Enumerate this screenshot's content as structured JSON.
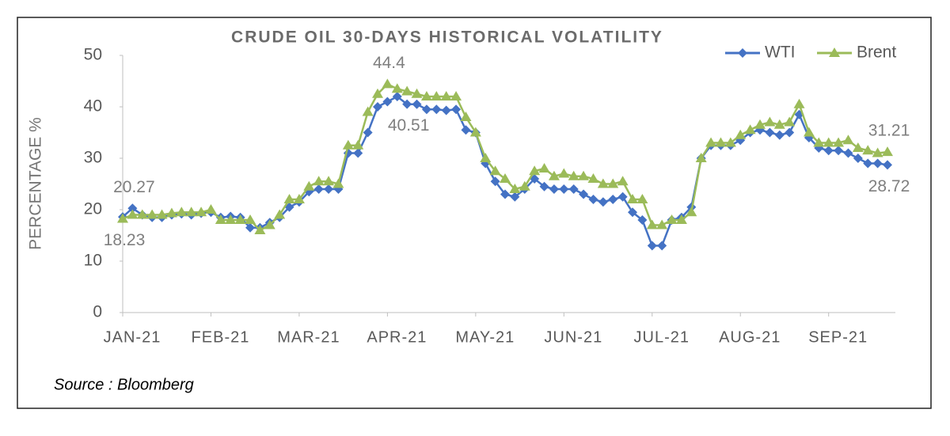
{
  "chart_data": {
    "type": "line",
    "title": "CRUDE OIL 30-DAYS HISTORICAL VOLATILITY",
    "y_label": "PERCENTAGE %",
    "source": "Source : Bloomberg",
    "categories": [
      "JAN-21",
      null,
      null,
      null,
      null,
      null,
      null,
      null,
      null,
      "FEB-21",
      null,
      null,
      null,
      null,
      null,
      null,
      null,
      null,
      "MAR-21",
      null,
      null,
      null,
      null,
      null,
      null,
      null,
      null,
      "APR-21",
      null,
      null,
      null,
      null,
      null,
      null,
      null,
      null,
      "MAY-21",
      null,
      null,
      null,
      null,
      null,
      null,
      null,
      null,
      "JUN-21",
      null,
      null,
      null,
      null,
      null,
      null,
      null,
      null,
      "JUL-21",
      null,
      null,
      null,
      null,
      null,
      null,
      null,
      null,
      "AUG-21",
      null,
      null,
      null,
      null,
      null,
      null,
      null,
      null,
      "SEP-21",
      null,
      null,
      null,
      null,
      null,
      null
    ],
    "series": [
      {
        "name": "WTI",
        "color": "#4472c4",
        "marker": "diamond",
        "values": [
          18.6,
          20.27,
          19,
          18.5,
          18.5,
          19,
          19.2,
          19,
          19.3,
          19.5,
          18.5,
          18.7,
          18.5,
          16.5,
          16.5,
          17.5,
          18.5,
          20.5,
          21.5,
          23.5,
          24,
          24,
          24,
          31,
          31,
          35,
          40,
          41,
          42,
          40.51,
          40.5,
          39.5,
          39.5,
          39.3,
          39.5,
          35.5,
          35,
          29,
          25.5,
          23,
          22.5,
          24,
          26,
          24.5,
          24,
          24,
          24,
          23,
          22,
          21.5,
          22,
          22.5,
          19.5,
          18,
          13,
          13,
          18,
          18.5,
          20.5,
          30,
          32.5,
          32.5,
          32.5,
          33.5,
          35,
          35.5,
          35,
          34.5,
          35,
          38.5,
          34,
          32,
          31.5,
          31.5,
          31,
          30,
          29,
          29,
          28.72
        ],
        "value_labels": [
          null,
          "20.27",
          null,
          null,
          null,
          null,
          null,
          null,
          null,
          null,
          null,
          null,
          null,
          null,
          null,
          null,
          null,
          null,
          null,
          null,
          null,
          null,
          null,
          null,
          null,
          null,
          null,
          null,
          null,
          "40.51",
          null,
          null,
          null,
          null,
          null,
          null,
          null,
          null,
          null,
          null,
          null,
          null,
          null,
          null,
          null,
          null,
          null,
          null,
          null,
          null,
          null,
          null,
          null,
          null,
          null,
          null,
          null,
          null,
          null,
          null,
          null,
          null,
          null,
          null,
          null,
          null,
          null,
          null,
          null,
          null,
          null,
          null,
          null,
          null,
          null,
          null,
          null,
          null,
          "28.72"
        ]
      },
      {
        "name": "Brent",
        "color": "#9bbb59",
        "marker": "triangle",
        "values": [
          18.23,
          19,
          19,
          19,
          19,
          19.3,
          19.5,
          19.5,
          19.5,
          20,
          18,
          18,
          18,
          18,
          16,
          17,
          19,
          22,
          22,
          24.5,
          25.5,
          25.5,
          25,
          32.5,
          32.5,
          39,
          42.5,
          44.4,
          43.5,
          43,
          42.5,
          42,
          42,
          42,
          42,
          38,
          35,
          30,
          27.5,
          26,
          24,
          24.5,
          27.5,
          28,
          26.5,
          27,
          26.5,
          26.5,
          26,
          25,
          25,
          25.5,
          22,
          22,
          17,
          17,
          18,
          18,
          19.5,
          30,
          33,
          33,
          33,
          34.5,
          35.5,
          36.5,
          37,
          36.5,
          37,
          40.5,
          35,
          33,
          33,
          33,
          33.5,
          32,
          31.5,
          31,
          31.21
        ],
        "value_labels": [
          "18.23",
          null,
          null,
          null,
          null,
          null,
          null,
          null,
          null,
          null,
          null,
          null,
          null,
          null,
          null,
          null,
          null,
          null,
          null,
          null,
          null,
          null,
          null,
          null,
          null,
          null,
          null,
          "44.4",
          null,
          null,
          null,
          null,
          null,
          null,
          null,
          null,
          null,
          null,
          null,
          null,
          null,
          null,
          null,
          null,
          null,
          null,
          null,
          null,
          null,
          null,
          null,
          null,
          null,
          null,
          null,
          null,
          null,
          null,
          null,
          null,
          null,
          null,
          null,
          null,
          null,
          null,
          null,
          null,
          null,
          null,
          null,
          null,
          null,
          null,
          null,
          null,
          null,
          null,
          "31.21"
        ]
      }
    ],
    "ylim": [
      0,
      50
    ],
    "yticks": [
      0,
      10,
      20,
      30,
      40,
      50
    ],
    "grid": false,
    "legend": "top-right"
  }
}
